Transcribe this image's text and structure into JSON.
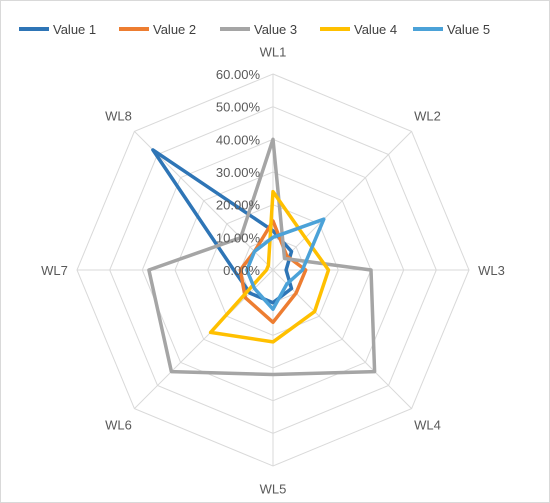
{
  "chart_data": {
    "type": "radar",
    "axes": [
      "WL1",
      "WL2",
      "WL3",
      "WL4",
      "WL5",
      "WL6",
      "WL7",
      "WL8"
    ],
    "ticks": [
      "0.00%",
      "10.00%",
      "20.00%",
      "30.00%",
      "40.00%",
      "50.00%",
      "60.00%"
    ],
    "tick_values": [
      0,
      10,
      20,
      30,
      40,
      50,
      60
    ],
    "rmax": 60,
    "grid": true,
    "legend_position": "top",
    "series": [
      {
        "name": "Value 1",
        "color": "#2e75b6",
        "values": [
          12,
          8,
          4,
          8,
          10,
          10,
          12,
          52
        ]
      },
      {
        "name": "Value 2",
        "color": "#ed7d31",
        "values": [
          15,
          6,
          10,
          10,
          16,
          12,
          10,
          8
        ]
      },
      {
        "name": "Value 3",
        "color": "#a5a5a5",
        "values": [
          40,
          5,
          30,
          44,
          32,
          44,
          38,
          14
        ]
      },
      {
        "name": "Value 4",
        "color": "#ffc000",
        "values": [
          24,
          14,
          17,
          18,
          22,
          27,
          2,
          2
        ]
      },
      {
        "name": "Value 5",
        "color": "#4ba2d8",
        "values": [
          10,
          22,
          9,
          6,
          12,
          8,
          8,
          8
        ]
      }
    ]
  }
}
